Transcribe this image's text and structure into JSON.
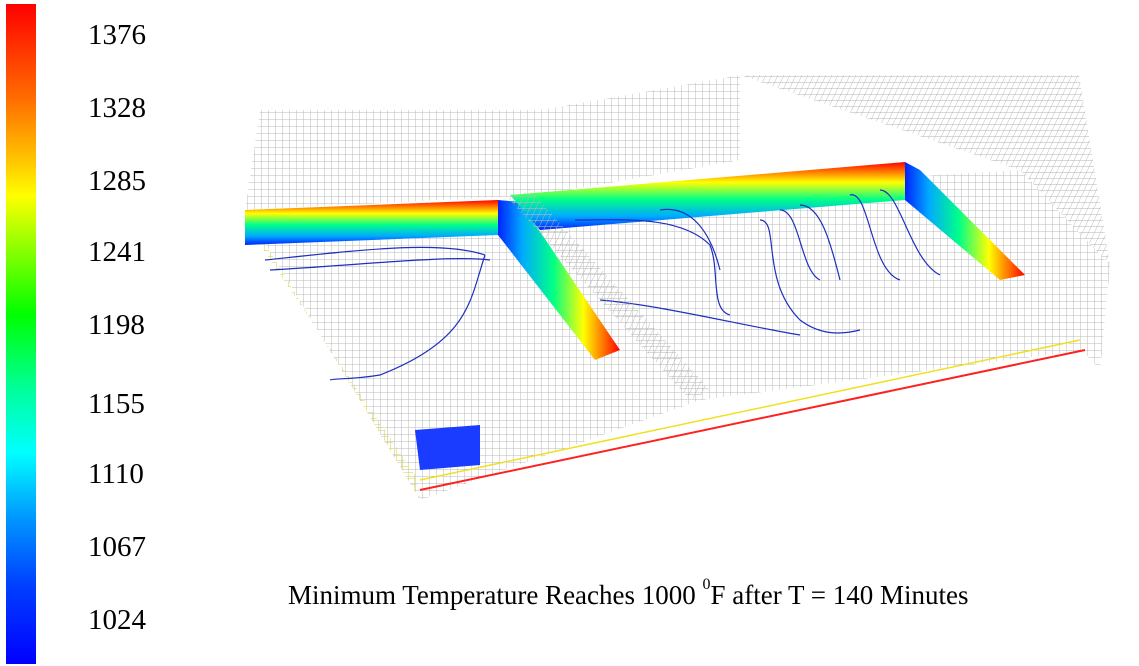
{
  "colorbar": {
    "ticks": [
      "1376",
      "1328",
      "1285",
      "1241",
      "1198",
      "1155",
      "1110",
      "1067",
      "1024"
    ],
    "colors": {
      "top": "#ff0000",
      "bottom": "#0000ff",
      "mesh": "#b9b9b9",
      "contour": "#1f2fbf"
    }
  },
  "caption": {
    "before": "Minimum Temperature Reaches 1000 ",
    "superscript": "0",
    "after": "F after T = 140 Minutes"
  }
}
